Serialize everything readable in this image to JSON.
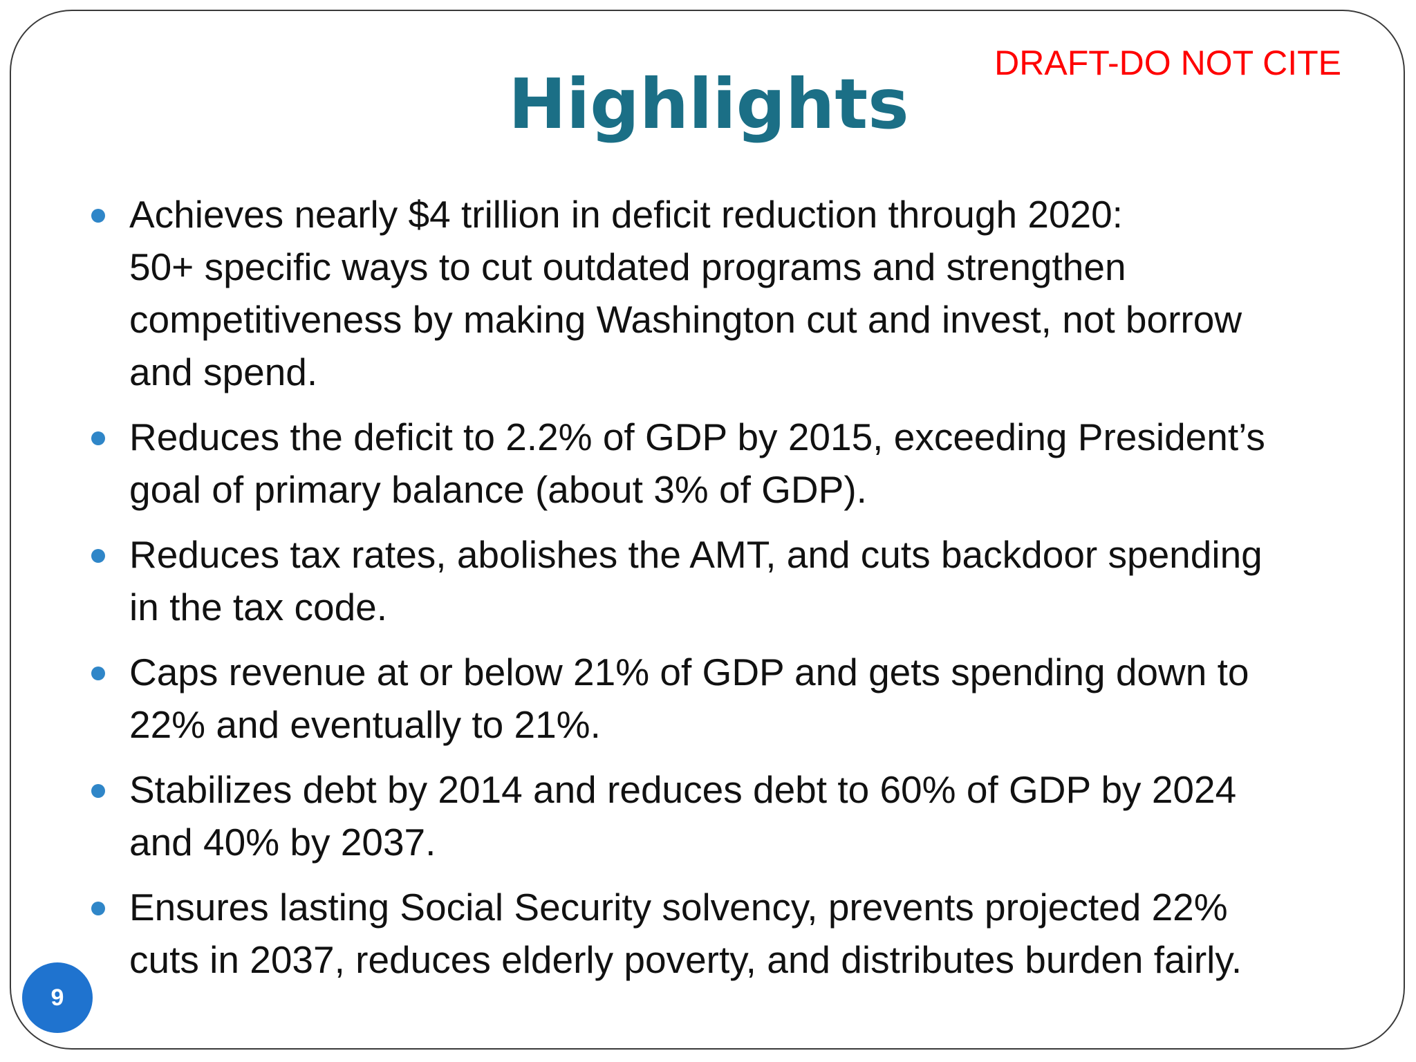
{
  "slide": {
    "draft_notice": "DRAFT-DO NOT CITE",
    "title": "Highlights",
    "page_number": "9",
    "bullets": [
      "Achieves nearly $4 trillion in deficit reduction through 2020:\n50+ specific ways to cut outdated programs and strengthen\ncompetitiveness by making Washington cut and invest, not borrow\nand spend.",
      "Reduces the deficit to 2.2% of GDP by 2015, exceeding President’s\ngoal of primary balance (about 3% of GDP).",
      "Reduces tax rates, abolishes the AMT, and cuts backdoor spending\nin the tax code.",
      "Caps revenue at or below 21% of GDP and gets spending down to\n22% and eventually to 21%.",
      "Stabilizes debt by 2014 and reduces debt to 60% of GDP by 2024\nand 40% by 2037.",
      "Ensures lasting Social Security solvency, prevents projected 22%\ncuts in 2037, reduces elderly poverty, and distributes burden fairly."
    ],
    "colors": {
      "title": "#1b6f86",
      "draft_notice": "#ff0000",
      "bullet": "#2f86c8",
      "page_badge": "#1f73cf"
    }
  }
}
